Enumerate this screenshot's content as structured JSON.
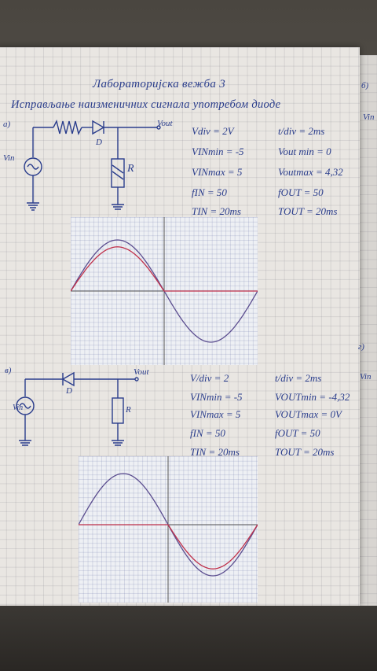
{
  "title": "Лабораторијска вежба 3",
  "subtitle": "Исправљање наизменичних сигнала употребом диоде",
  "section_markers": {
    "a": "а)",
    "b": "б)",
    "v": "в)",
    "g": "г)"
  },
  "right_margin_label_1": "Vin",
  "right_margin_label_2": "Vin",
  "circuit_a": {
    "vin": "Vin",
    "vout": "Vout",
    "diode": "D",
    "resistor": "R"
  },
  "circuit_b": {
    "vin": "Vin",
    "vout": "Vout",
    "diode": "D",
    "resistor": "R"
  },
  "params_a": {
    "left": [
      "Vdiv = 2V",
      "VINmin = -5",
      "VINmax = 5",
      "fIN = 50",
      "TIN = 20ms"
    ],
    "right": [
      "t/div = 2ms",
      "Vout min = 0",
      "Voutmax = 4,32",
      "fOUT = 50",
      "TOUT = 20ms"
    ]
  },
  "params_b": {
    "left": [
      "V/div = 2",
      "VINmin = -5",
      "VINmax = 5",
      "fIN = 50",
      "TIN = 20ms"
    ],
    "right": [
      "t/div = 2ms",
      "VOUTmin = -4,32",
      "VOUTmax = 0V",
      "fOUT = 50",
      "TOUT = 20ms"
    ]
  },
  "colors": {
    "ink": "#2a3d8c",
    "input_trace": "#5b4d8f",
    "output_trace": "#c0304a",
    "paper": "#e9e6e2"
  },
  "scope_a": {
    "input_amplitude": 5,
    "output_positive_peak": 4.32,
    "output_negative_peak": 0
  },
  "scope_b": {
    "input_amplitude": 5,
    "output_positive_peak": 0,
    "output_negative_peak": -4.32
  }
}
